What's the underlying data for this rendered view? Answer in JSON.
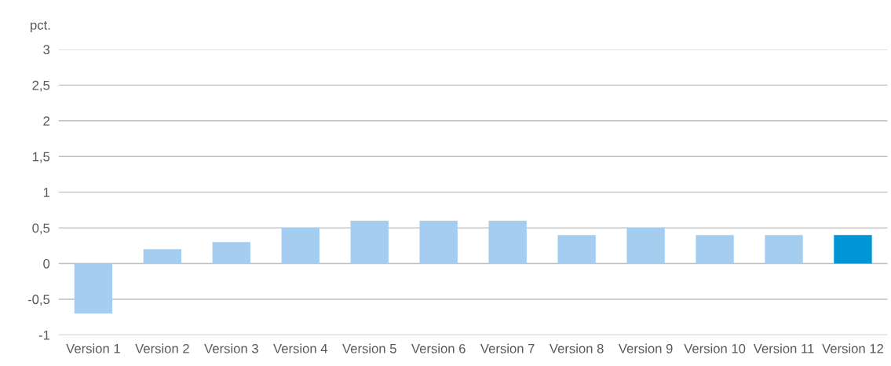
{
  "chart_data": {
    "type": "bar",
    "ylabel": "pct.",
    "categories": [
      "Version 1",
      "Version 2",
      "Version 3",
      "Version 4",
      "Version 5",
      "Version 6",
      "Version 7",
      "Version 8",
      "Version 9",
      "Version 10",
      "Version 11",
      "Version 12"
    ],
    "values": [
      -0.7,
      0.2,
      0.3,
      0.5,
      0.6,
      0.6,
      0.6,
      0.4,
      0.5,
      0.4,
      0.4,
      0.4
    ],
    "colors": [
      "#a5cdf0",
      "#a5cdf0",
      "#a5cdf0",
      "#a5cdf0",
      "#a5cdf0",
      "#a5cdf0",
      "#a5cdf0",
      "#a5cdf0",
      "#a5cdf0",
      "#a5cdf0",
      "#a5cdf0",
      "#0096d6"
    ],
    "ylim": [
      -1,
      3
    ],
    "yticks": [
      -1,
      {
        "value": -0.5,
        "label": "-0,5"
      },
      0,
      {
        "value": 0.5,
        "label": "0,5"
      },
      1,
      {
        "value": 1.5,
        "label": "1,5"
      },
      2,
      {
        "value": 2.5,
        "label": "2,5"
      },
      3
    ],
    "grid": "y",
    "legend": false
  }
}
